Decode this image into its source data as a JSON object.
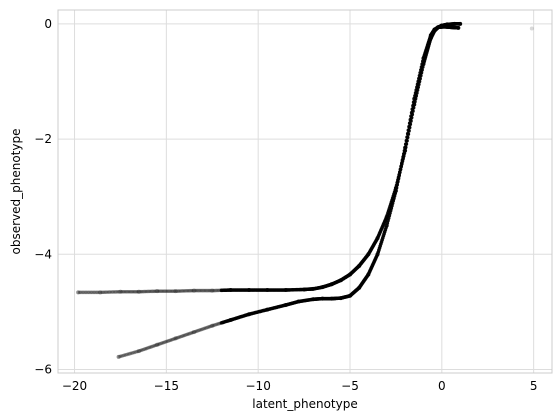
{
  "chart_data": {
    "type": "scatter",
    "xlabel": "latent_phenotype",
    "ylabel": "observed_phenotype",
    "xlim": [
      -20.9,
      6.0
    ],
    "ylim": [
      -6.06,
      0.24
    ],
    "xticks": [
      -20,
      -15,
      -10,
      -5,
      0,
      5
    ],
    "yticks": [
      -6,
      -4,
      -2,
      0
    ],
    "grid": true,
    "point_color": "#000000",
    "series": [
      {
        "points": [
          [
            -19.8,
            -4.66
          ],
          [
            -18.6,
            -4.66
          ],
          [
            -17.5,
            -4.65
          ],
          [
            -16.5,
            -4.65
          ],
          [
            -15.5,
            -4.64
          ],
          [
            -14.5,
            -4.64
          ],
          [
            -13.5,
            -4.63
          ],
          [
            -12.5,
            -4.63
          ],
          [
            -11.5,
            -4.62
          ],
          [
            -10.5,
            -4.62
          ],
          [
            -9.5,
            -4.62
          ],
          [
            -8.5,
            -4.62
          ],
          [
            -7.5,
            -4.61
          ],
          [
            -7.0,
            -4.6
          ],
          [
            -6.5,
            -4.57
          ],
          [
            -6.0,
            -4.52
          ],
          [
            -5.5,
            -4.45
          ],
          [
            -5.0,
            -4.35
          ],
          [
            -4.5,
            -4.2
          ],
          [
            -4.0,
            -4.0
          ],
          [
            -3.5,
            -3.72
          ],
          [
            -3.0,
            -3.35
          ],
          [
            -2.5,
            -2.85
          ],
          [
            -2.0,
            -2.2
          ],
          [
            -1.5,
            -1.4
          ],
          [
            -1.0,
            -0.7
          ],
          [
            -0.6,
            -0.25
          ],
          [
            -0.4,
            -0.12
          ],
          [
            -0.2,
            -0.06
          ],
          [
            0.0,
            -0.03
          ],
          [
            0.3,
            -0.01
          ],
          [
            0.7,
            0.0
          ],
          [
            1.0,
            0.0
          ]
        ]
      },
      {
        "points": [
          [
            -17.6,
            -5.78
          ],
          [
            -16.5,
            -5.68
          ],
          [
            -15.5,
            -5.57
          ],
          [
            -14.5,
            -5.46
          ],
          [
            -13.5,
            -5.35
          ],
          [
            -12.5,
            -5.24
          ],
          [
            -11.5,
            -5.14
          ],
          [
            -10.5,
            -5.04
          ],
          [
            -9.5,
            -4.96
          ],
          [
            -8.5,
            -4.88
          ],
          [
            -7.8,
            -4.82
          ],
          [
            -7.0,
            -4.78
          ],
          [
            -6.5,
            -4.77
          ],
          [
            -6.0,
            -4.77
          ],
          [
            -5.5,
            -4.76
          ],
          [
            -5.0,
            -4.72
          ],
          [
            -4.5,
            -4.58
          ],
          [
            -4.0,
            -4.35
          ],
          [
            -3.5,
            -4.0
          ],
          [
            -3.0,
            -3.5
          ],
          [
            -2.5,
            -2.9
          ],
          [
            -2.0,
            -2.15
          ],
          [
            -1.5,
            -1.3
          ],
          [
            -1.0,
            -0.6
          ],
          [
            -0.6,
            -0.2
          ],
          [
            -0.4,
            -0.1
          ],
          [
            -0.2,
            -0.06
          ],
          [
            0.1,
            -0.05
          ],
          [
            0.5,
            -0.06
          ],
          [
            0.9,
            -0.07
          ]
        ]
      },
      {
        "points": [
          [
            4.9,
            -0.08
          ]
        ]
      }
    ]
  }
}
